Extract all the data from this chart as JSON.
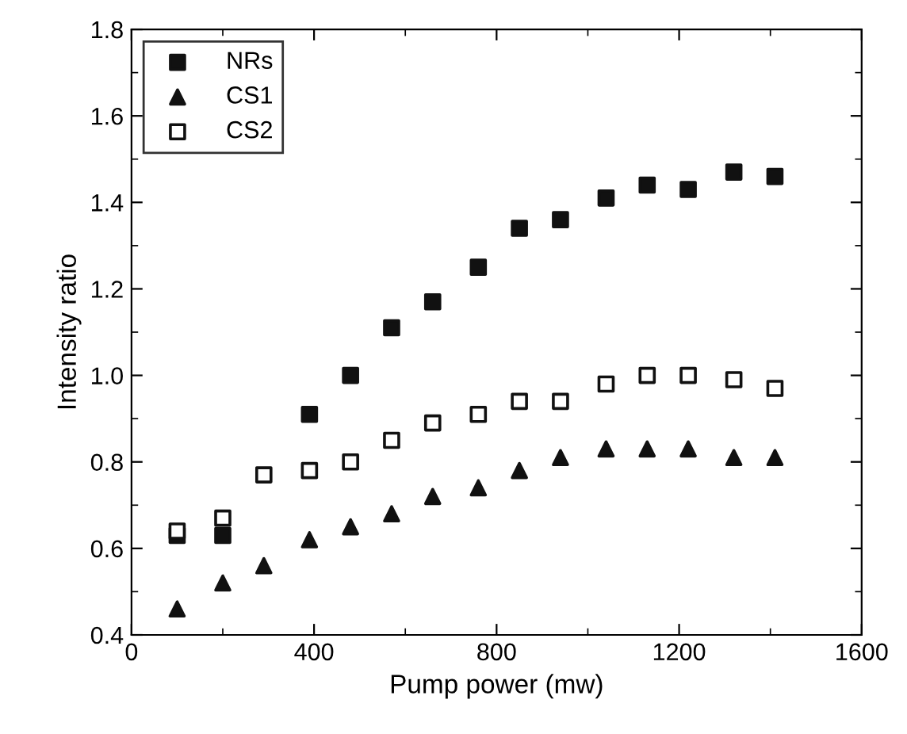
{
  "chart_data": {
    "type": "scatter",
    "xlabel": "Pump power (mw)",
    "ylabel": "Intensity ratio",
    "xlim": [
      0,
      1600
    ],
    "xticks": [
      0,
      400,
      800,
      1200,
      1600
    ],
    "ylim": [
      0.4,
      1.8
    ],
    "yticks": [
      {
        "value": 0.4,
        "label": "0.4"
      },
      {
        "value": 0.6,
        "label": "0.6"
      },
      {
        "value": 0.8,
        "label": "0.8"
      },
      {
        "value": 1.0,
        "label": "1.0"
      },
      {
        "value": 1.2,
        "label": "1.2"
      },
      {
        "value": 1.4,
        "label": "1.4"
      },
      {
        "value": 1.6,
        "label": "1.6"
      },
      {
        "value": 1.8,
        "label": "1.8"
      }
    ],
    "grid": false,
    "legend": "top left",
    "series": [
      {
        "name": "NRs",
        "color": "#111111",
        "marker": "square",
        "x": [
          100,
          200,
          390,
          480,
          570,
          660,
          760,
          850,
          940,
          1040,
          1130,
          1220,
          1320,
          1410
        ],
        "values": [
          0.63,
          0.63,
          0.91,
          1.0,
          1.11,
          1.17,
          1.25,
          1.34,
          1.36,
          1.41,
          1.44,
          1.43,
          1.47,
          1.46
        ]
      },
      {
        "name": "CS1",
        "color": "#111111",
        "marker": "triangle",
        "x": [
          100,
          200,
          290,
          390,
          480,
          570,
          660,
          760,
          850,
          940,
          1040,
          1130,
          1220,
          1320,
          1410
        ],
        "values": [
          0.46,
          0.52,
          0.56,
          0.62,
          0.65,
          0.68,
          0.72,
          0.74,
          0.78,
          0.81,
          0.83,
          0.83,
          0.83,
          0.81,
          0.81
        ]
      },
      {
        "name": "CS2",
        "color": "#ffffff",
        "marker": "square",
        "x": [
          100,
          200,
          290,
          390,
          480,
          570,
          660,
          760,
          850,
          940,
          1040,
          1130,
          1220,
          1320,
          1410
        ],
        "values": [
          0.64,
          0.67,
          0.77,
          0.78,
          0.8,
          0.85,
          0.89,
          0.91,
          0.94,
          0.94,
          0.98,
          1.0,
          1.0,
          0.99,
          0.97
        ]
      }
    ]
  }
}
